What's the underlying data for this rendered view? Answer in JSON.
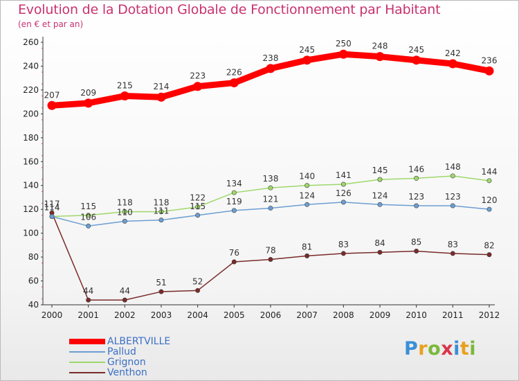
{
  "title": "Evolution de la Dotation Globale de Fonctionnement par Habitant",
  "subtitle": "(en € et par an)",
  "logo_text": "Proxiti",
  "logo_letters": [
    {
      "ch": "P",
      "color": "#3a8fd6"
    },
    {
      "ch": "r",
      "color": "#e8a11d"
    },
    {
      "ch": "o",
      "color": "#7ab83a"
    },
    {
      "ch": "x",
      "color": "#d9364b"
    },
    {
      "ch": "i",
      "color": "#3a8fd6"
    },
    {
      "ch": "t",
      "color": "#e8a11d"
    },
    {
      "ch": "i",
      "color": "#7ab83a"
    }
  ],
  "chart_data": {
    "type": "line",
    "x": [
      "2000",
      "2001",
      "2002",
      "2003",
      "2004",
      "2005",
      "2006",
      "2007",
      "2008",
      "2009",
      "2010",
      "2011",
      "2012"
    ],
    "ylim": [
      40,
      260
    ],
    "yticks": [
      40,
      60,
      80,
      100,
      120,
      140,
      160,
      180,
      200,
      220,
      240,
      260
    ],
    "grid": false,
    "legend_position": "bottom-left",
    "series": [
      {
        "name": "ALBERTVILLE",
        "color": "#ff0000",
        "values": [
          207,
          209,
          215,
          214,
          223,
          226,
          238,
          245,
          250,
          248,
          245,
          242,
          236
        ],
        "labels": [
          "207",
          "209",
          "215",
          "214",
          "223",
          "226",
          "238",
          "245",
          "250",
          "248",
          "245",
          "242",
          "236"
        ]
      },
      {
        "name": "Pallud",
        "color": "#6c9ed2",
        "values": [
          114,
          106,
          110,
          111,
          115,
          119,
          121,
          124,
          126,
          124,
          123,
          123,
          120
        ],
        "labels": [
          "114",
          "106",
          "110",
          "111",
          "115",
          "119",
          "121",
          "124",
          "126",
          "124",
          "123",
          "123",
          "120"
        ]
      },
      {
        "name": "Grignon",
        "color": "#9ed86a",
        "values": [
          114,
          115,
          118,
          118,
          122,
          134,
          138,
          140,
          141,
          145,
          146,
          148,
          144
        ],
        "labels": [
          "114",
          "115",
          "118",
          "118",
          "122",
          "134",
          "138",
          "140",
          "141",
          "145",
          "146",
          "148",
          "144"
        ]
      },
      {
        "name": "Venthon",
        "color": "#7a2a2a",
        "values": [
          117,
          44,
          44,
          51,
          52,
          76,
          78,
          81,
          83,
          84,
          85,
          83,
          82
        ],
        "labels": [
          "117",
          "44",
          "44",
          "51",
          "52",
          "76",
          "78",
          "81",
          "83",
          "84",
          "85",
          "83",
          "82"
        ]
      }
    ]
  }
}
